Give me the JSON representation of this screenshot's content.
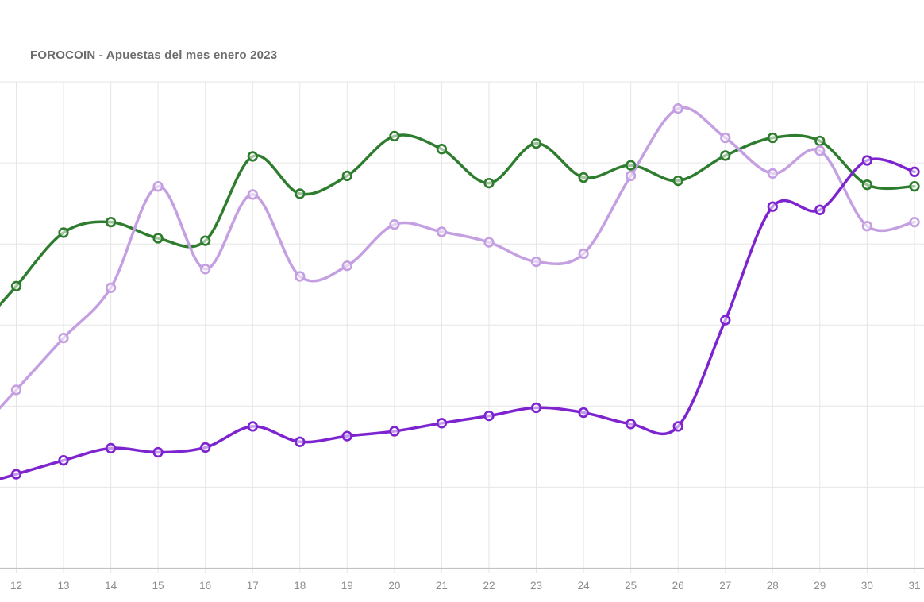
{
  "header": {
    "title": "FOROCOIN - Apuestas del mes enero 2023"
  },
  "chart_data": {
    "type": "line",
    "title": "FOROCOIN - Apuestas del mes enero 2023",
    "categories": [
      "12",
      "13",
      "14",
      "15",
      "16",
      "17",
      "18",
      "19",
      "20",
      "21",
      "22",
      "23",
      "24",
      "25",
      "26",
      "27",
      "28",
      "29",
      "30",
      "31"
    ],
    "xlabel": "",
    "ylabel": "",
    "ylim": [
      0,
      6
    ],
    "grid": "on",
    "legend_position": "none",
    "y_axis_labels_visible": false,
    "x_axis_cropped_left": true,
    "colors": {
      "grid_line": "#e6e6e6",
      "axis_line": "#c2c2c2",
      "tick_label": "#8c8c8c",
      "background": "#ffffff"
    },
    "series": [
      {
        "name": "series-dark-green",
        "color": "#2e7d2e",
        "values": [
          3.48,
          4.14,
          4.27,
          4.07,
          4.04,
          5.08,
          4.62,
          4.84,
          5.33,
          5.17,
          4.75,
          5.24,
          4.82,
          4.97,
          4.78,
          5.09,
          5.31,
          5.27,
          4.73,
          4.71
        ]
      },
      {
        "name": "series-lavender",
        "color": "#c49fe2",
        "values": [
          2.2,
          2.84,
          3.46,
          4.71,
          3.69,
          4.61,
          3.6,
          3.73,
          4.24,
          4.15,
          4.02,
          3.78,
          3.88,
          4.84,
          5.67,
          5.31,
          4.87,
          5.15,
          4.22,
          4.27
        ]
      },
      {
        "name": "series-dark-purple",
        "color": "#7d23cf",
        "values": [
          1.16,
          1.33,
          1.48,
          1.43,
          1.49,
          1.75,
          1.56,
          1.63,
          1.69,
          1.79,
          1.88,
          1.98,
          1.92,
          1.78,
          1.75,
          3.06,
          4.46,
          4.42,
          5.03,
          4.89
        ]
      }
    ]
  }
}
